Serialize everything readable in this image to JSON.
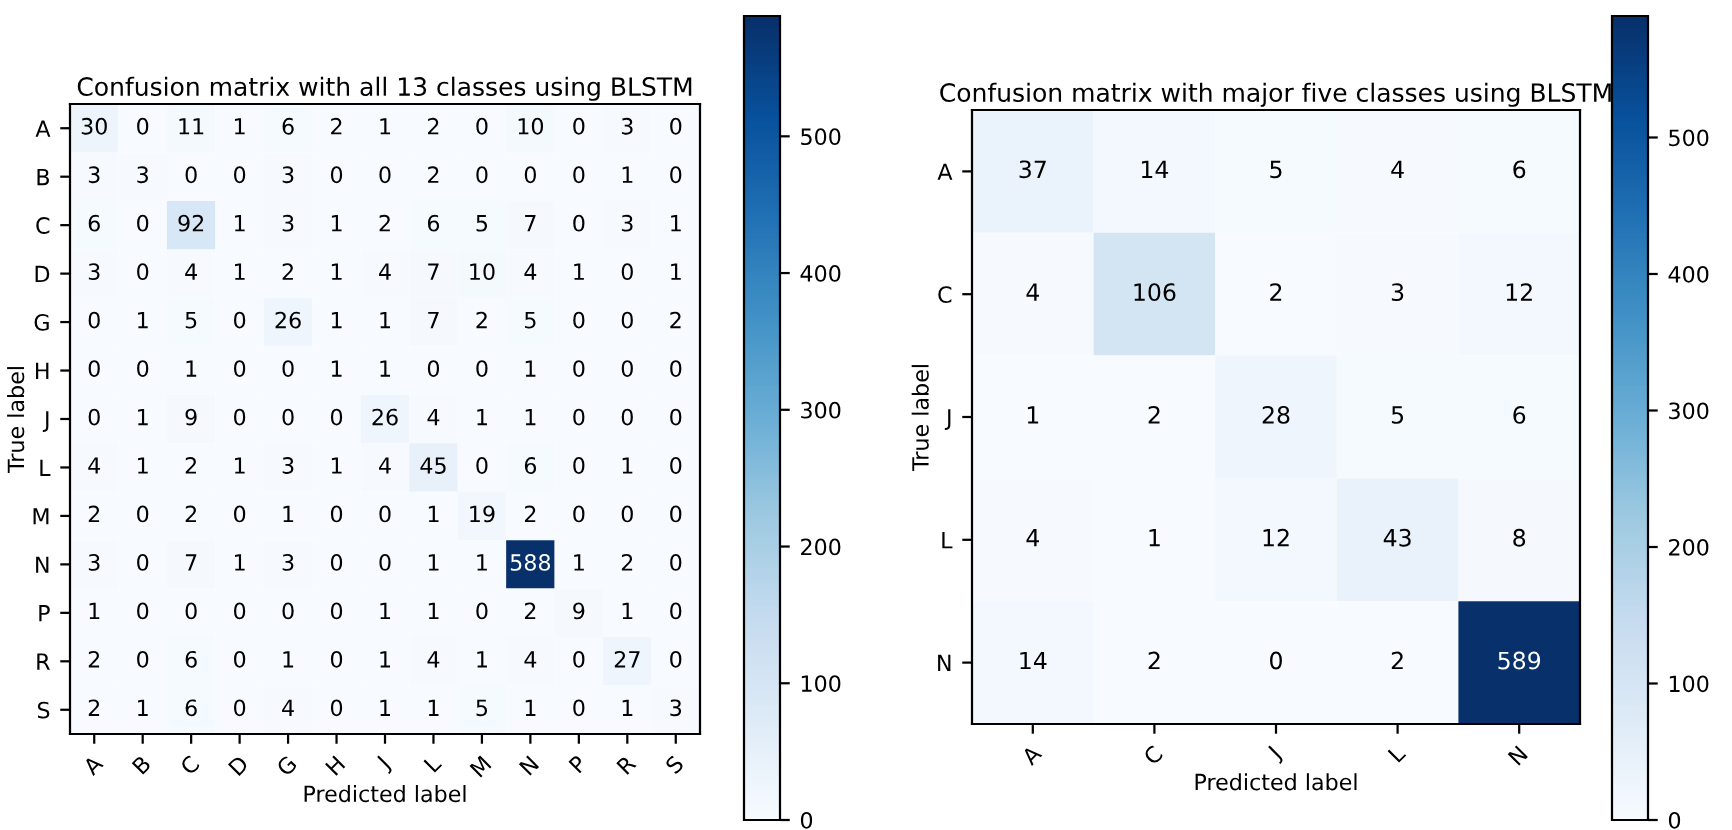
{
  "chart_data": [
    {
      "type": "heatmap",
      "title": "Confusion matrix with all 13 classes using BLSTM",
      "xlabel": "Predicted label",
      "ylabel": "True label",
      "categories": [
        "A",
        "B",
        "C",
        "D",
        "G",
        "H",
        "J",
        "L",
        "M",
        "N",
        "P",
        "R",
        "S"
      ],
      "y_categories": [
        "A",
        "B",
        "C",
        "D",
        "G",
        "H",
        "J",
        "L",
        "M",
        "N",
        "P",
        "R",
        "S"
      ],
      "cells": [
        [
          30,
          0,
          11,
          1,
          6,
          2,
          1,
          2,
          0,
          10,
          0,
          3,
          0
        ],
        [
          3,
          3,
          0,
          0,
          3,
          0,
          0,
          2,
          0,
          0,
          0,
          1,
          0
        ],
        [
          6,
          0,
          92,
          1,
          3,
          1,
          2,
          6,
          5,
          7,
          0,
          3,
          1
        ],
        [
          3,
          0,
          4,
          1,
          2,
          1,
          4,
          7,
          10,
          4,
          1,
          0,
          1
        ],
        [
          0,
          1,
          5,
          0,
          26,
          1,
          1,
          7,
          2,
          5,
          0,
          0,
          2
        ],
        [
          0,
          0,
          1,
          0,
          0,
          1,
          1,
          0,
          0,
          1,
          0,
          0,
          0
        ],
        [
          0,
          1,
          9,
          0,
          0,
          0,
          26,
          4,
          1,
          1,
          0,
          0,
          0
        ],
        [
          4,
          1,
          2,
          1,
          3,
          1,
          4,
          45,
          0,
          6,
          0,
          1,
          0
        ],
        [
          2,
          0,
          2,
          0,
          1,
          0,
          0,
          1,
          19,
          2,
          0,
          0,
          0
        ],
        [
          3,
          0,
          7,
          1,
          3,
          0,
          0,
          1,
          1,
          588,
          1,
          2,
          0
        ],
        [
          1,
          0,
          0,
          0,
          0,
          0,
          1,
          1,
          0,
          2,
          9,
          1,
          0
        ],
        [
          2,
          0,
          6,
          0,
          1,
          0,
          1,
          4,
          1,
          4,
          0,
          27,
          0
        ],
        [
          2,
          1,
          6,
          0,
          4,
          0,
          1,
          1,
          5,
          1,
          0,
          1,
          3
        ]
      ],
      "clim": [
        0,
        588
      ],
      "cticks": [
        0,
        100,
        200,
        300,
        400,
        500
      ],
      "data_labels": true
    },
    {
      "type": "heatmap",
      "title": "Confusion matrix with major five classes using BLSTM",
      "xlabel": "Predicted label",
      "ylabel": "True label",
      "categories": [
        "A",
        "C",
        "J",
        "L",
        "N"
      ],
      "y_categories": [
        "A",
        "C",
        "J",
        "L",
        "N"
      ],
      "cells": [
        [
          37,
          14,
          5,
          4,
          6
        ],
        [
          4,
          106,
          2,
          3,
          12
        ],
        [
          1,
          2,
          28,
          5,
          6
        ],
        [
          4,
          1,
          12,
          43,
          8
        ],
        [
          14,
          2,
          0,
          2,
          589
        ]
      ],
      "clim": [
        0,
        589
      ],
      "cticks": [
        0,
        100,
        200,
        300,
        400,
        500
      ],
      "data_labels": true
    }
  ]
}
